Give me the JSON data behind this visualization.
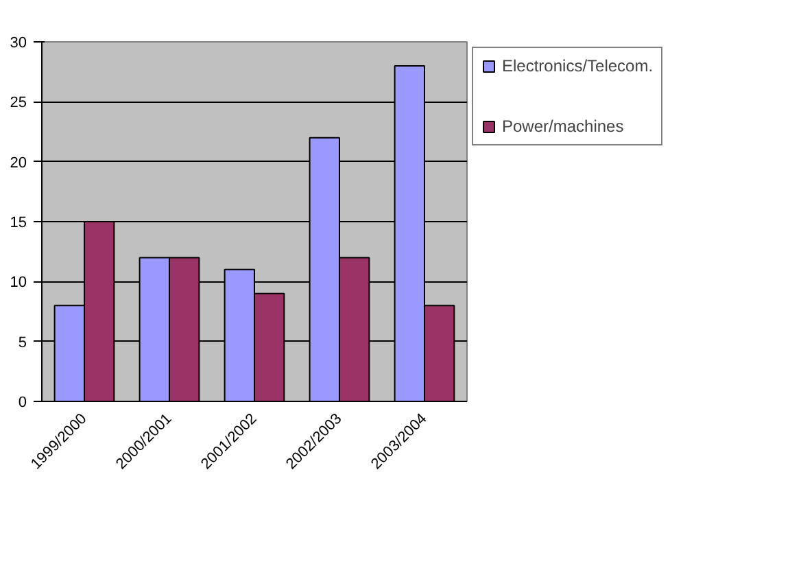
{
  "chart_data": {
    "type": "bar",
    "categories": [
      "1999/2000",
      "2000/2001",
      "2001/2002",
      "2002/2003",
      "2003/2004"
    ],
    "series": [
      {
        "name": "Electronics/Telecom.",
        "color": "#9999ff",
        "values": [
          8,
          12,
          11,
          22,
          28
        ]
      },
      {
        "name": "Power/machines",
        "color": "#993366",
        "values": [
          15,
          12,
          9,
          12,
          8
        ]
      }
    ],
    "ylim": [
      0,
      30
    ],
    "yticks": [
      0,
      5,
      10,
      15,
      20,
      25,
      30
    ],
    "grid": "y",
    "legend": "right"
  }
}
